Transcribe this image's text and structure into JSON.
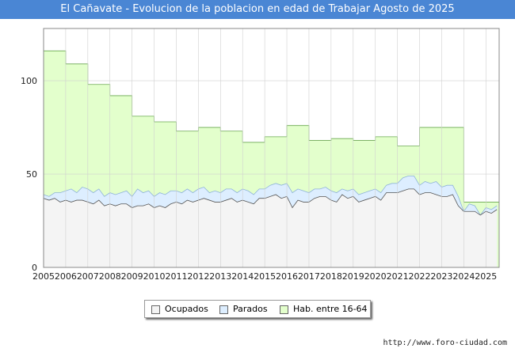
{
  "title": "El Cañavate - Evolucion de la poblacion en edad de Trabajar Agosto de 2025",
  "footer": "http://www.foro-ciudad.com",
  "colors": {
    "hab": "#e3ffcc",
    "hab_line": "#6aa84f",
    "parados": "#ddeeff",
    "parados_line": "#8fb3d9",
    "ocupados": "#f4f4f4",
    "ocupados_line": "#555555"
  },
  "chart_data": {
    "type": "area",
    "title": "El Cañavate - Evolucion de la poblacion en edad de Trabajar Agosto de 2025",
    "xlabel": "",
    "ylabel": "",
    "ylim": [
      0,
      128
    ],
    "xlim": [
      2005,
      2025.6
    ],
    "yticks": [
      0,
      50,
      100
    ],
    "xticks": [
      "2005",
      "2006",
      "2007",
      "2008",
      "2009",
      "2010",
      "2011",
      "2012",
      "2013",
      "2014",
      "2015",
      "2016",
      "2017",
      "2018",
      "2019",
      "2020",
      "2021",
      "2022",
      "2023",
      "2024",
      "2025"
    ],
    "legend": [
      "Ocupados",
      "Parados",
      "Hab. entre 16-64"
    ],
    "hab": [
      {
        "year": 2005,
        "value": 116
      },
      {
        "year": 2006,
        "value": 109
      },
      {
        "year": 2007,
        "value": 98
      },
      {
        "year": 2008,
        "value": 92
      },
      {
        "year": 2009,
        "value": 81
      },
      {
        "year": 2010,
        "value": 78
      },
      {
        "year": 2011,
        "value": 73
      },
      {
        "year": 2012,
        "value": 75
      },
      {
        "year": 2013,
        "value": 73
      },
      {
        "year": 2014,
        "value": 67
      },
      {
        "year": 2015,
        "value": 70
      },
      {
        "year": 2016,
        "value": 76
      },
      {
        "year": 2017,
        "value": 68
      },
      {
        "year": 2018,
        "value": 69
      },
      {
        "year": 2019,
        "value": 68
      },
      {
        "year": 2020,
        "value": 70
      },
      {
        "year": 2021,
        "value": 65
      },
      {
        "year": 2022,
        "value": 75
      },
      {
        "year": 2023,
        "value": 75
      },
      {
        "year": 2024,
        "value": 35
      },
      {
        "year": 2025,
        "value": 35
      }
    ],
    "activos": {
      "x": [
        2005,
        2005.25,
        2005.5,
        2005.75,
        2006,
        2006.25,
        2006.5,
        2006.75,
        2007,
        2007.25,
        2007.5,
        2007.75,
        2008,
        2008.25,
        2008.5,
        2008.75,
        2009,
        2009.25,
        2009.5,
        2009.75,
        2010,
        2010.25,
        2010.5,
        2010.75,
        2011,
        2011.25,
        2011.5,
        2011.75,
        2012,
        2012.25,
        2012.5,
        2012.75,
        2013,
        2013.25,
        2013.5,
        2013.75,
        2014,
        2014.25,
        2014.5,
        2014.75,
        2015,
        2015.25,
        2015.5,
        2015.75,
        2016,
        2016.25,
        2016.5,
        2016.75,
        2017,
        2017.25,
        2017.5,
        2017.75,
        2018,
        2018.25,
        2018.5,
        2018.75,
        2019,
        2019.25,
        2019.5,
        2019.75,
        2020,
        2020.25,
        2020.5,
        2020.75,
        2021,
        2021.25,
        2021.5,
        2021.75,
        2022,
        2022.25,
        2022.5,
        2022.75,
        2023,
        2023.25,
        2023.5,
        2023.75,
        2024,
        2024.25,
        2024.5,
        2024.75,
        2025,
        2025.25,
        2025.5
      ],
      "values": [
        39,
        38,
        40,
        40,
        41,
        42,
        40,
        43,
        42,
        40,
        42,
        38,
        40,
        39,
        40,
        41,
        38,
        42,
        40,
        41,
        38,
        40,
        39,
        41,
        41,
        40,
        42,
        40,
        42,
        43,
        40,
        41,
        40,
        42,
        42,
        40,
        42,
        41,
        39,
        42,
        42,
        44,
        45,
        44,
        45,
        40,
        42,
        41,
        40,
        42,
        42,
        43,
        41,
        40,
        42,
        41,
        42,
        39,
        40,
        41,
        42,
        40,
        44,
        45,
        45,
        48,
        49,
        49,
        44,
        46,
        45,
        46,
        43,
        44,
        44,
        38,
        30,
        34,
        33,
        28,
        32,
        31,
        33
      ]
    },
    "ocupados": {
      "x": [
        2005,
        2005.25,
        2005.5,
        2005.75,
        2006,
        2006.25,
        2006.5,
        2006.75,
        2007,
        2007.25,
        2007.5,
        2007.75,
        2008,
        2008.25,
        2008.5,
        2008.75,
        2009,
        2009.25,
        2009.5,
        2009.75,
        2010,
        2010.25,
        2010.5,
        2010.75,
        2011,
        2011.25,
        2011.5,
        2011.75,
        2012,
        2012.25,
        2012.5,
        2012.75,
        2013,
        2013.25,
        2013.5,
        2013.75,
        2014,
        2014.25,
        2014.5,
        2014.75,
        2015,
        2015.25,
        2015.5,
        2015.75,
        2016,
        2016.25,
        2016.5,
        2016.75,
        2017,
        2017.25,
        2017.5,
        2017.75,
        2018,
        2018.25,
        2018.5,
        2018.75,
        2019,
        2019.25,
        2019.5,
        2019.75,
        2020,
        2020.25,
        2020.5,
        2020.75,
        2021,
        2021.25,
        2021.5,
        2021.75,
        2022,
        2022.25,
        2022.5,
        2022.75,
        2023,
        2023.25,
        2023.5,
        2023.75,
        2024,
        2024.25,
        2024.5,
        2024.75,
        2025,
        2025.25,
        2025.5
      ],
      "values": [
        37,
        36,
        37,
        35,
        36,
        35,
        36,
        36,
        35,
        34,
        36,
        33,
        34,
        33,
        34,
        34,
        32,
        33,
        33,
        34,
        32,
        33,
        32,
        34,
        35,
        34,
        36,
        35,
        36,
        37,
        36,
        35,
        35,
        36,
        37,
        35,
        36,
        35,
        34,
        37,
        37,
        38,
        39,
        37,
        38,
        32,
        36,
        35,
        35,
        37,
        38,
        38,
        36,
        35,
        39,
        37,
        38,
        35,
        36,
        37,
        38,
        36,
        40,
        40,
        40,
        41,
        42,
        42,
        39,
        40,
        40,
        39,
        38,
        38,
        39,
        33,
        30,
        30,
        30,
        28,
        30,
        29,
        31
      ]
    }
  }
}
